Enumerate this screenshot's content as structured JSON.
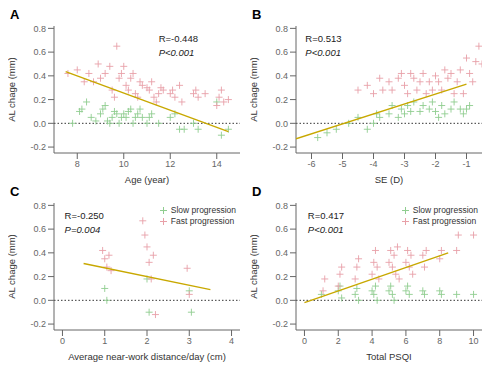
{
  "chart_data": [
    {
      "type": "scatter",
      "title": "A",
      "xlabel": "Age (year)",
      "ylabel": "AL chage (mm)",
      "xlim": [
        7,
        15
      ],
      "ylim": [
        -0.25,
        0.82
      ],
      "xticks": [
        8,
        10,
        12,
        14
      ],
      "yticks": [
        -0.2,
        {
          "value": 0,
          "label": "0.0"
        },
        0.2,
        0.4,
        0.6,
        0.8
      ],
      "grid": false,
      "hlines": [
        0
      ],
      "annotations": [
        {
          "text": "R=-0.448",
          "x": 11.5,
          "y": 0.75
        },
        {
          "text": "P<0.001",
          "x": 11.5,
          "y": 0.63
        }
      ],
      "series": [
        {
          "name": "Slow progression",
          "type": "scatter",
          "marker": "plus",
          "color": "#90CD90",
          "x": [
            7.8,
            8.1,
            8.2,
            8.4,
            8.6,
            8.8,
            9.0,
            9.1,
            9.2,
            9.3,
            9.4,
            9.5,
            9.6,
            9.7,
            9.8,
            9.9,
            10.0,
            10.1,
            10.2,
            10.3,
            10.4,
            10.5,
            10.6,
            10.7,
            10.8,
            11.0,
            11.1,
            11.2,
            11.5,
            12.0,
            12.2,
            12.4,
            12.6,
            13.0,
            13.2,
            14.0,
            14.2,
            14.5
          ],
          "y": [
            0.0,
            0.1,
            0.12,
            0.18,
            0.05,
            0.02,
            0.08,
            0.12,
            0.15,
            0.02,
            0.0,
            0.05,
            0.1,
            0.08,
            0.0,
            0.05,
            0.08,
            0.05,
            0.1,
            0.12,
            0.0,
            0.05,
            0.08,
            0.12,
            0.05,
            0.0,
            0.05,
            0.08,
            0.0,
            0.05,
            0.08,
            -0.05,
            -0.05,
            0.0,
            -0.05,
            0.18,
            -0.1,
            -0.05
          ]
        },
        {
          "name": "Fast progression",
          "type": "scatter",
          "marker": "plus",
          "color": "#E8A0A8",
          "x": [
            7.6,
            8.0,
            8.3,
            8.5,
            8.7,
            8.9,
            9.0,
            9.2,
            9.4,
            9.5,
            9.6,
            9.7,
            9.8,
            9.9,
            10.0,
            10.1,
            10.2,
            10.3,
            10.4,
            10.5,
            10.6,
            10.7,
            10.8,
            11.0,
            11.1,
            11.2,
            11.3,
            11.4,
            11.5,
            11.6,
            11.7,
            12.0,
            12.1,
            12.2,
            12.4,
            12.5,
            13.0,
            13.1,
            13.2,
            13.5,
            14.0,
            14.1,
            14.2,
            14.3,
            14.5
          ],
          "y": [
            0.42,
            0.45,
            0.35,
            0.42,
            0.35,
            0.5,
            0.38,
            0.42,
            0.48,
            0.28,
            0.22,
            0.65,
            0.38,
            0.42,
            0.48,
            0.32,
            0.28,
            0.38,
            0.42,
            0.25,
            0.22,
            0.35,
            0.32,
            0.3,
            0.28,
            0.35,
            0.22,
            0.18,
            0.25,
            0.3,
            0.28,
            0.25,
            0.28,
            0.22,
            0.32,
            0.18,
            0.25,
            0.28,
            0.22,
            0.25,
            0.15,
            0.22,
            0.28,
            0.18,
            0.2
          ]
        },
        {
          "type": "line",
          "line_style": "solid",
          "color": "#C8A800",
          "x": [
            7.5,
            14.5
          ],
          "y": [
            0.435,
            -0.07
          ]
        }
      ]
    },
    {
      "type": "scatter",
      "title": "B",
      "xlabel": "SE (D)",
      "ylabel": "AL chage (mm)",
      "xlim": [
        -6.5,
        -0.5
      ],
      "ylim": [
        -0.25,
        0.82
      ],
      "xticks": [
        -6,
        -5,
        -4,
        -3,
        -2,
        -1
      ],
      "yticks": [
        -0.2,
        {
          "value": 0,
          "label": "0.0"
        },
        0.2,
        0.4,
        0.6,
        0.8
      ],
      "grid": false,
      "hlines": [
        0
      ],
      "annotations": [
        {
          "text": "R=0.513",
          "x": -6.2,
          "y": 0.75
        },
        {
          "text": "P<0.001",
          "x": -6.2,
          "y": 0.63
        }
      ],
      "series": [
        {
          "name": "Slow progression",
          "type": "scatter",
          "marker": "plus",
          "color": "#90CD90",
          "x": [
            -5.8,
            -5.5,
            -5.2,
            -4.8,
            -4.5,
            -4.2,
            -4.0,
            -3.9,
            -3.8,
            -3.5,
            -3.4,
            -3.2,
            -3.1,
            -3.0,
            -2.9,
            -2.8,
            -2.7,
            -2.5,
            -2.4,
            -2.2,
            -2.1,
            -2.0,
            -1.9,
            -1.8,
            -1.7,
            -1.5,
            -1.4,
            -1.2,
            -1.1,
            -1.0,
            -0.9
          ],
          "y": [
            -0.12,
            -0.08,
            -0.05,
            0.0,
            0.05,
            -0.05,
            0.0,
            0.08,
            0.05,
            0.08,
            0.15,
            0.05,
            0.12,
            0.08,
            0.15,
            0.1,
            0.18,
            0.1,
            0.15,
            0.12,
            0.18,
            0.1,
            0.05,
            0.15,
            0.08,
            0.12,
            0.18,
            0.12,
            0.08,
            0.12,
            0.15
          ]
        },
        {
          "name": "Fast progression",
          "type": "scatter",
          "marker": "plus",
          "color": "#E8A0A8",
          "x": [
            -4.5,
            -4.2,
            -4.0,
            -3.8,
            -3.7,
            -3.5,
            -3.4,
            -3.2,
            -3.1,
            -3.0,
            -2.9,
            -2.8,
            -2.7,
            -2.6,
            -2.5,
            -2.4,
            -2.3,
            -2.2,
            -2.1,
            -2.0,
            -1.9,
            -1.8,
            -1.7,
            -1.6,
            -1.5,
            -1.4,
            -1.3,
            -1.2,
            -1.1,
            -1.0,
            -0.9,
            -0.8,
            -0.7,
            -0.6,
            -0.5
          ],
          "y": [
            0.28,
            0.32,
            0.25,
            0.38,
            0.28,
            0.35,
            0.28,
            0.38,
            0.42,
            0.32,
            0.25,
            0.42,
            0.38,
            0.28,
            0.35,
            0.42,
            0.25,
            0.35,
            0.28,
            0.4,
            0.35,
            0.28,
            0.45,
            0.38,
            0.42,
            0.25,
            0.35,
            0.45,
            0.25,
            0.55,
            0.42,
            0.35,
            0.52,
            0.65,
            0.5
          ]
        },
        {
          "type": "line",
          "line_style": "solid",
          "color": "#C8A800",
          "x": [
            -6.5,
            -1.0
          ],
          "y": [
            -0.13,
            0.33
          ]
        }
      ]
    },
    {
      "type": "scatter",
      "title": "C",
      "xlabel": "Average near-work distance/day (cm)",
      "ylabel": "AL chage (mm)",
      "xlim": [
        -0.2,
        4.2
      ],
      "ylim": [
        -0.25,
        0.82
      ],
      "xticks": [
        0,
        1,
        2,
        3,
        4
      ],
      "yticks": [
        -0.2,
        {
          "value": 0,
          "label": "0.0"
        },
        0.2,
        0.4,
        0.6,
        0.8
      ],
      "grid": false,
      "legend": "upper right",
      "hlines": [
        0
      ],
      "annotations": [
        {
          "text": "R=-0.250",
          "x": 0.05,
          "y": 0.75
        },
        {
          "text": "P=0.004",
          "x": 0.05,
          "y": 0.63
        }
      ],
      "series": [
        {
          "name": "Slow progression",
          "type": "scatter",
          "marker": "plus",
          "color": "#90CD90",
          "x": [
            1.0,
            1.05,
            2.0,
            2.05,
            3.0,
            3.05
          ],
          "y": [
            0.1,
            0.0,
            0.18,
            -0.1,
            0.08,
            -0.1
          ]
        },
        {
          "name": "Fast progression",
          "type": "scatter",
          "marker": "plus",
          "color": "#E8A0A8",
          "x": [
            0.95,
            1.0,
            1.05,
            1.1,
            1.15,
            1.9,
            1.95,
            2.0,
            2.05,
            2.1,
            2.15,
            2.2,
            2.95,
            3.0
          ],
          "y": [
            0.42,
            0.35,
            0.28,
            0.38,
            0.25,
            0.67,
            0.55,
            0.45,
            0.32,
            0.18,
            0.38,
            -0.12,
            0.27,
            0.05
          ]
        },
        {
          "type": "line",
          "line_style": "solid",
          "color": "#C8A800",
          "x": [
            0.5,
            3.5
          ],
          "y": [
            0.31,
            0.09
          ]
        }
      ]
    },
    {
      "type": "scatter",
      "title": "D",
      "xlabel": "Total PSQI",
      "ylabel": "AL chage (mm)",
      "xlim": [
        -0.5,
        10.5
      ],
      "ylim": [
        -0.25,
        0.82
      ],
      "xticks": [
        0,
        2,
        4,
        6,
        8,
        10
      ],
      "yticks": [
        -0.2,
        {
          "value": 0,
          "label": "0.0"
        },
        0.2,
        0.4,
        0.6,
        0.8
      ],
      "grid": false,
      "legend": "upper right",
      "hlines": [
        0
      ],
      "annotations": [
        {
          "text": "R=0.417",
          "x": 0.2,
          "y": 0.75
        },
        {
          "text": "P<0.001",
          "x": 0.2,
          "y": 0.63
        }
      ],
      "series": [
        {
          "name": "Slow progression",
          "type": "scatter",
          "marker": "plus",
          "color": "#90CD90",
          "x": [
            1.0,
            2.0,
            2.1,
            2.2,
            3.0,
            3.1,
            3.2,
            4.0,
            4.1,
            4.2,
            4.3,
            5.0,
            5.1,
            5.2,
            5.3,
            6.0,
            6.1,
            6.2,
            7.0,
            7.1,
            8.0,
            8.1,
            9.0,
            10.0
          ],
          "y": [
            0.05,
            0.08,
            0.12,
            0.02,
            0.05,
            0.1,
            0.0,
            0.08,
            0.05,
            0.12,
            0.0,
            0.08,
            0.12,
            0.05,
            0.0,
            0.08,
            0.12,
            0.05,
            0.08,
            0.05,
            0.08,
            0.05,
            0.05,
            0.05
          ]
        },
        {
          "name": "Fast progression",
          "type": "scatter",
          "marker": "plus",
          "color": "#E8A0A8",
          "x": [
            1.1,
            1.2,
            2.0,
            2.1,
            2.2,
            3.0,
            3.1,
            3.2,
            4.0,
            4.1,
            4.2,
            4.3,
            4.4,
            5.0,
            5.1,
            5.2,
            5.3,
            5.4,
            5.5,
            5.6,
            6.0,
            6.1,
            6.2,
            6.3,
            6.4,
            7.0,
            7.1,
            7.2,
            8.0,
            8.1,
            9.0,
            9.1,
            10.0
          ],
          "y": [
            0.08,
            0.18,
            0.12,
            0.22,
            0.28,
            0.18,
            0.28,
            0.35,
            0.22,
            0.32,
            0.42,
            0.28,
            0.18,
            0.32,
            0.42,
            0.28,
            0.38,
            0.22,
            0.45,
            0.18,
            0.32,
            0.42,
            0.28,
            0.38,
            0.22,
            0.38,
            0.28,
            0.42,
            0.35,
            0.42,
            0.42,
            0.55,
            0.55
          ]
        },
        {
          "type": "line",
          "line_style": "solid",
          "color": "#C8A800",
          "x": [
            0,
            8.5
          ],
          "y": [
            -0.02,
            0.4
          ]
        }
      ]
    }
  ]
}
